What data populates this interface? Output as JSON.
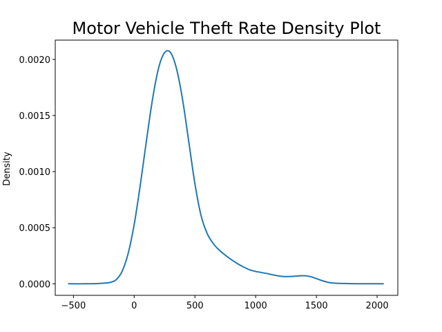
{
  "chart_data": {
    "type": "line",
    "title": "Motor Vehicle Theft Rate Density Plot",
    "xlabel": "",
    "ylabel": "Density",
    "xlim": [
      -650,
      2170
    ],
    "ylim": [
      -0.000103,
      0.002172
    ],
    "grid": false,
    "x_ticks": [
      -500,
      0,
      500,
      1000,
      1500,
      2000
    ],
    "x_tick_labels": [
      "−500",
      "0",
      "500",
      "1000",
      "1500",
      "2000"
    ],
    "y_ticks": [
      0.0,
      0.0005,
      0.001,
      0.0015,
      0.002
    ],
    "y_tick_labels": [
      "0.0000",
      "0.0005",
      "0.0010",
      "0.0015",
      "0.0020"
    ],
    "line_color": "#1f77b4",
    "series": [
      {
        "name": "",
        "x": [
          -540,
          -400,
          -300,
          -250,
          -200,
          -150,
          -100,
          -50,
          0,
          50,
          100,
          150,
          200,
          250,
          300,
          350,
          400,
          450,
          500,
          550,
          600,
          650,
          700,
          750,
          800,
          850,
          900,
          950,
          1000,
          1050,
          1100,
          1150,
          1200,
          1250,
          1300,
          1350,
          1400,
          1450,
          1500,
          1550,
          1600,
          1650,
          1700,
          1800,
          1900,
          2000,
          2050
        ],
        "y": [
          0.0,
          0.0,
          2e-06,
          6e-06,
          1.2e-05,
          3.5e-05,
          0.00011,
          0.00027,
          0.00053,
          0.00088,
          0.00127,
          0.00164,
          0.00192,
          0.00206,
          0.00206,
          0.00191,
          0.00163,
          0.00126,
          0.00089,
          0.00061,
          0.00045,
          0.00036,
          0.0003,
          0.000255,
          0.000215,
          0.00018,
          0.00015,
          0.000125,
          0.00011,
          0.0001,
          9e-05,
          7.8e-05,
          6.8e-05,
          6.4e-05,
          6.6e-05,
          7e-05,
          7.2e-05,
          6.4e-05,
          4.6e-05,
          2.7e-05,
          1.2e-05,
          6e-06,
          3e-06,
          1e-06,
          0.0,
          0.0,
          0.0
        ]
      }
    ]
  }
}
